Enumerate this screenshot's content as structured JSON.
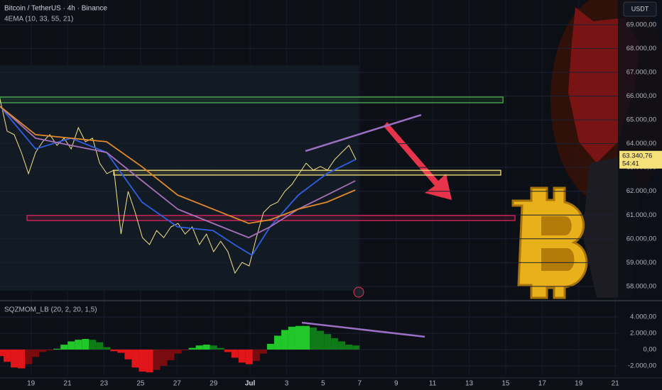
{
  "header": {
    "symbol": "Bitcoin / TetherUS · 4h · Binance",
    "indicator": "4EMA (10, 33, 55, 21)",
    "currency": "USDT"
  },
  "chart_data": [
    {
      "type": "line",
      "x": [
        17.3,
        17.69,
        18.08,
        18.47,
        18.86,
        19.25,
        19.64,
        20.03,
        20.42,
        20.81,
        21.2,
        21.59,
        21.98,
        22.37,
        22.76,
        23.15,
        23.54,
        23.93,
        24.32,
        24.71,
        25.1,
        25.49,
        25.88,
        26.27,
        26.66,
        27.05,
        27.44,
        27.83,
        28.22,
        28.61,
        29.0,
        29.39,
        29.78,
        30.17,
        30.56,
        30.95,
        31.34,
        31.73,
        32.12,
        32.51,
        32.9,
        33.29,
        33.68,
        34.07,
        34.46,
        34.85,
        35.24,
        35.63,
        36.02,
        36.41,
        36.8
      ],
      "series": [
        {
          "color": "#f3e38a",
          "values": [
            65870,
            64530,
            64380,
            63630,
            62740,
            63630,
            64080,
            64380,
            63930,
            64230,
            63780,
            64670,
            64080,
            64230,
            63180,
            62740,
            62890,
            60200,
            61990,
            61100,
            60050,
            59760,
            60350,
            60050,
            60500,
            60650,
            60200,
            60500,
            59760,
            60200,
            59460,
            59900,
            59460,
            58560,
            59010,
            58860,
            60050,
            61100,
            61400,
            61540,
            61990,
            62290,
            62740,
            63180,
            62890,
            63040,
            62890,
            63330,
            63630,
            63930,
            63330
          ]
        },
        {
          "color": "#2f5fe0",
          "x": [
            17.3,
            19.25,
            21.19,
            23.14,
            25.08,
            27.03,
            28.97,
            30.14,
            31.11,
            32.09,
            33.64,
            35.2,
            36.76
          ],
          "values": [
            65570,
            63780,
            64230,
            63630,
            61540,
            60500,
            60350,
            59760,
            59310,
            60500,
            61840,
            62740,
            63330
          ]
        },
        {
          "color": "#a770b8",
          "x": [
            17.3,
            19.25,
            21.19,
            23.14,
            25.08,
            27.03,
            28.97,
            30.92,
            32.09,
            33.64,
            35.2,
            36.76
          ],
          "values": [
            65570,
            64230,
            63930,
            63630,
            62440,
            61250,
            60650,
            60050,
            60500,
            61250,
            61840,
            62440
          ]
        },
        {
          "color": "#e08a2c",
          "x": [
            17.3,
            19.25,
            21.19,
            23.14,
            25.08,
            27.03,
            28.97,
            30.92,
            32.09,
            33.64,
            35.2,
            36.76
          ],
          "values": [
            65570,
            64380,
            64230,
            64080,
            63030,
            61840,
            61250,
            60650,
            60800,
            61250,
            61540,
            62050
          ]
        }
      ],
      "xlim": [
        17.3,
        51.15
      ],
      "ylim": [
        57520,
        70040
      ],
      "xticks": [
        19,
        21,
        23,
        25,
        27,
        29,
        {
          "value": 31,
          "label": "Jul"
        },
        {
          "value": 33,
          "label": "3"
        },
        {
          "value": 35,
          "label": "5"
        },
        {
          "value": 37,
          "label": "7"
        },
        {
          "value": 39,
          "label": "9"
        },
        {
          "value": 41,
          "label": "11"
        },
        {
          "value": 43,
          "label": "13"
        },
        {
          "value": 45,
          "label": "15"
        },
        {
          "value": 47,
          "label": "17"
        },
        {
          "value": 49,
          "label": "19"
        },
        {
          "value": 51,
          "label": "21"
        }
      ],
      "yticks": [
        {
          "value": 58000,
          "label": "58.000,00"
        },
        {
          "value": 59000,
          "label": "59.000,00"
        },
        {
          "value": 60000,
          "label": "60.000,00"
        },
        {
          "value": 61000,
          "label": "61.000,00"
        },
        {
          "value": 62000,
          "label": "62.000,00"
        },
        {
          "value": 63000,
          "label": "63.000,00"
        },
        {
          "value": 64000,
          "label": "64.000,00"
        },
        {
          "value": 65000,
          "label": "65.000,00"
        },
        {
          "value": 66000,
          "label": "66.000,00"
        },
        {
          "value": 67000,
          "label": "67.000,00"
        },
        {
          "value": 68000,
          "label": "68.000,00"
        },
        {
          "value": 69000,
          "label": "69.000,00"
        }
      ],
      "grid": true,
      "zones": [
        {
          "x": [
            17.3,
            44.85
          ],
          "y": [
            65720,
            65960
          ],
          "color": "#4caf50"
        },
        {
          "x": [
            23.53,
            44.73
          ],
          "y": [
            62680,
            62880
          ],
          "color": "#f5e07a"
        },
        {
          "x": [
            18.78,
            45.51
          ],
          "y": [
            60770,
            60980
          ],
          "color": "#e0245e"
        }
      ],
      "trendlines": [
        {
          "x": [
            34.03,
            40.37
          ],
          "y": [
            63690,
            65210
          ],
          "color": "#9c6fc4"
        }
      ],
      "last_price": {
        "value": 63340.76,
        "label": "63.340,76"
      },
      "countdown": "54:41"
    },
    {
      "type": "bar",
      "title": "SQZMOM_LB (20, 2, 20, 1,5)",
      "x": [
        17.3,
        17.69,
        18.08,
        18.47,
        18.86,
        19.25,
        19.64,
        20.03,
        20.42,
        20.81,
        21.2,
        21.59,
        21.98,
        22.37,
        22.76,
        23.15,
        23.54,
        23.93,
        24.32,
        24.71,
        25.1,
        25.49,
        25.88,
        26.27,
        26.66,
        27.05,
        27.44,
        27.83,
        28.22,
        28.61,
        29.0,
        29.39,
        29.78,
        30.17,
        30.56,
        30.95,
        31.34,
        31.73,
        32.12,
        32.51,
        32.9,
        33.29,
        33.68,
        34.07,
        34.46,
        34.85,
        35.24,
        35.63,
        36.02,
        36.41,
        36.8
      ],
      "values": [
        -800,
        -1500,
        -2200,
        -2300,
        -1800,
        -900,
        -300,
        -100,
        100,
        600,
        1000,
        1200,
        1300,
        1200,
        900,
        300,
        -200,
        -400,
        -1200,
        -2200,
        -2700,
        -2800,
        -2500,
        -2000,
        -1300,
        -500,
        -100,
        200,
        500,
        600,
        500,
        200,
        -300,
        -1000,
        -1600,
        -1800,
        -1400,
        -500,
        700,
        1700,
        2400,
        2800,
        2900,
        2900,
        2700,
        2300,
        1900,
        1400,
        1000,
        600,
        500
      ],
      "colors": {
        "up_rising": "#22c82a",
        "up_falling": "#0f7a18",
        "down_falling": "#e0161a",
        "down_rising": "#7a0c10"
      },
      "xlim": [
        17.3,
        51.15
      ],
      "ylim": [
        -3220,
        5650
      ],
      "yticks": [
        {
          "value": -2000,
          "label": "-2.000,00"
        },
        {
          "value": 0,
          "label": "0,00"
        },
        {
          "value": 2000,
          "label": "2.000,00"
        },
        {
          "value": 4000,
          "label": "4.000,00"
        }
      ],
      "trendlines": [
        {
          "x": [
            33.84,
            40.57
          ],
          "y": [
            3300,
            1570
          ],
          "color": "#9c6fc4"
        }
      ]
    }
  ]
}
